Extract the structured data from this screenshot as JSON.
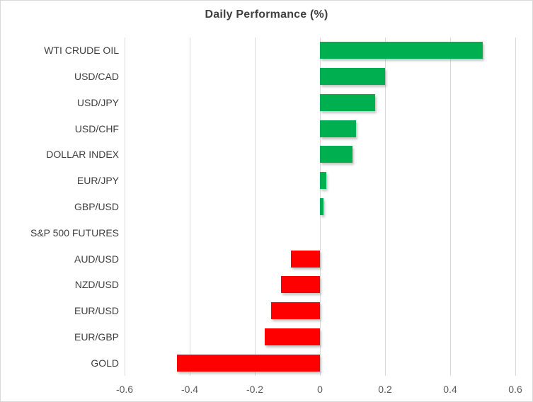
{
  "chart": {
    "title": "Daily Performance (%)"
  },
  "chart_data": {
    "type": "bar",
    "orientation": "horizontal",
    "title": "Daily Performance (%)",
    "categories": [
      "WTI CRUDE OIL",
      "USD/CAD",
      "USD/JPY",
      "USD/CHF",
      "DOLLAR INDEX",
      "EUR/JPY",
      "GBP/USD",
      "S&P 500 FUTURES",
      "AUD/USD",
      "NZD/USD",
      "EUR/USD",
      "EUR/GBP",
      "GOLD"
    ],
    "values": [
      0.5,
      0.2,
      0.17,
      0.11,
      0.1,
      0.02,
      0.01,
      0.0,
      -0.09,
      -0.12,
      -0.15,
      -0.17,
      -0.44
    ],
    "xlabel": "",
    "ylabel": "",
    "xlim": [
      -0.6,
      0.6
    ],
    "x_ticks": [
      -0.6,
      -0.4,
      -0.2,
      0,
      0.2,
      0.4,
      0.6
    ],
    "x_tick_labels": [
      "-0.6",
      "-0.4",
      "-0.2",
      "0",
      "0.2",
      "0.4",
      "0.6"
    ],
    "grid": true,
    "legend": false,
    "colors": {
      "positive": "#00B050",
      "negative": "#FF0000",
      "gridline": "#D9D9D9",
      "title_text": "#404040",
      "category_text": "#404040",
      "tick_text": "#595959",
      "border": "#D9D9D9",
      "background": "#FFFFFF"
    }
  }
}
